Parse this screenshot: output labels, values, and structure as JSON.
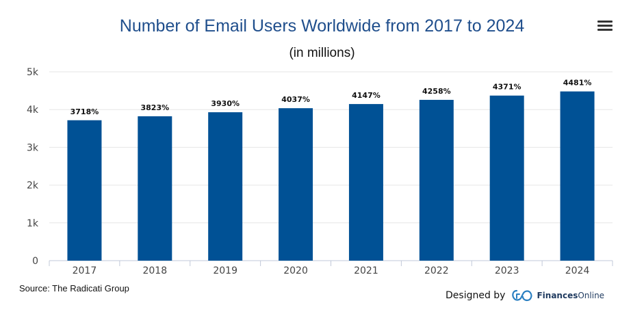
{
  "header": {
    "title": "Number of Email Users Worldwide from 2017 to 2024",
    "subtitle": "(in millions)"
  },
  "menu_icon": "hamburger-menu-icon",
  "footer": {
    "source": "Source: The Radicati Group",
    "credit_label": "Designed by",
    "brand_bold": "Finances",
    "brand_thin": "Online",
    "brand_icon": "financesonline-logo-icon"
  },
  "colors": {
    "bar": "#005195",
    "title": "#1f4e8c",
    "grid": "#e6e6e6"
  },
  "chart_data": {
    "type": "bar",
    "title": "Number of Email Users Worldwide from 2017 to 2024",
    "subtitle": "(in millions)",
    "categories": [
      "2017",
      "2018",
      "2019",
      "2020",
      "2021",
      "2022",
      "2023",
      "2024"
    ],
    "values": [
      3718,
      3823,
      3930,
      4037,
      4147,
      4258,
      4371,
      4481
    ],
    "data_labels": [
      "3718%",
      "3823%",
      "3930%",
      "4037%",
      "4147%",
      "4258%",
      "4371%",
      "4481%"
    ],
    "ylim": [
      0,
      5000
    ],
    "yticks": [
      0,
      1000,
      2000,
      3000,
      4000,
      5000
    ],
    "ytick_labels": [
      "0",
      "1k",
      "2k",
      "3k",
      "4k",
      "5k"
    ],
    "grid": true,
    "legend": false
  }
}
